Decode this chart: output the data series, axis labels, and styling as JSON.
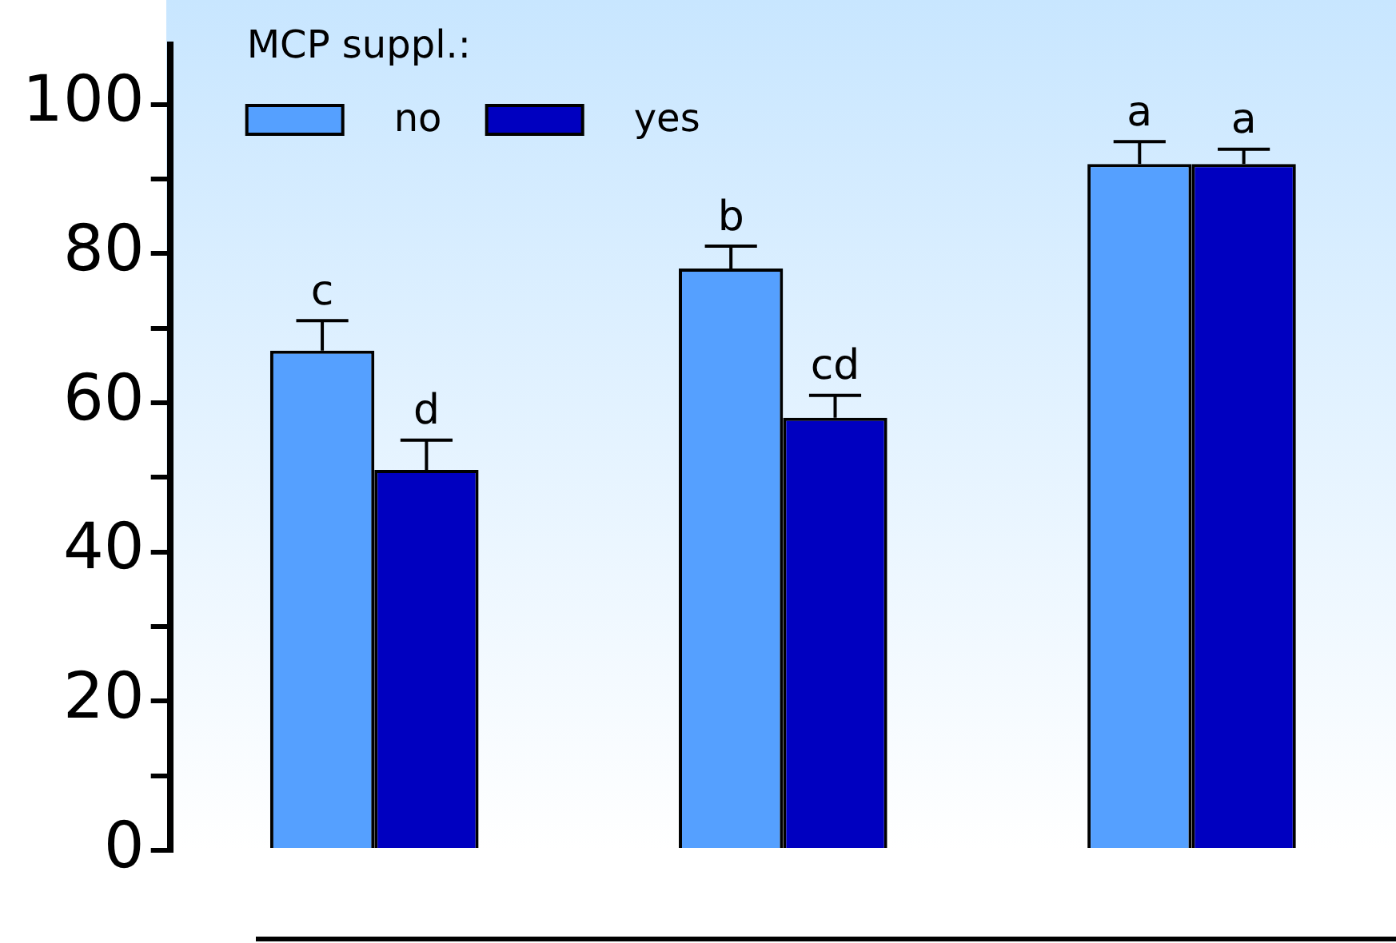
{
  "chart_data": {
    "type": "bar",
    "legend_title": "MCP suppl.:",
    "categories": [
      null,
      null,
      null
    ],
    "series": [
      {
        "name": "no",
        "color": "#55a0ff",
        "values": [
          67,
          78,
          92
        ],
        "errors": [
          [
            67,
            71
          ],
          [
            78,
            81
          ],
          [
            92,
            95
          ]
        ]
      },
      {
        "name": "yes",
        "color": "#0000c0",
        "values": [
          51,
          58,
          92
        ],
        "errors": [
          [
            51,
            55
          ],
          [
            58,
            61
          ],
          [
            92,
            94
          ]
        ]
      }
    ],
    "ylim": [
      0,
      108
    ],
    "yticks": [
      0,
      {
        "value": 10,
        "label": null
      },
      20,
      {
        "value": 30,
        "label": null
      },
      40,
      {
        "value": 50,
        "label": null
      },
      60,
      {
        "value": 70,
        "label": null
      },
      80,
      {
        "value": 90,
        "label": null
      },
      100
    ],
    "annotations": [
      "c",
      "d",
      "b",
      "cd",
      "a",
      "a"
    ],
    "legend": "top left",
    "grid": false
  }
}
